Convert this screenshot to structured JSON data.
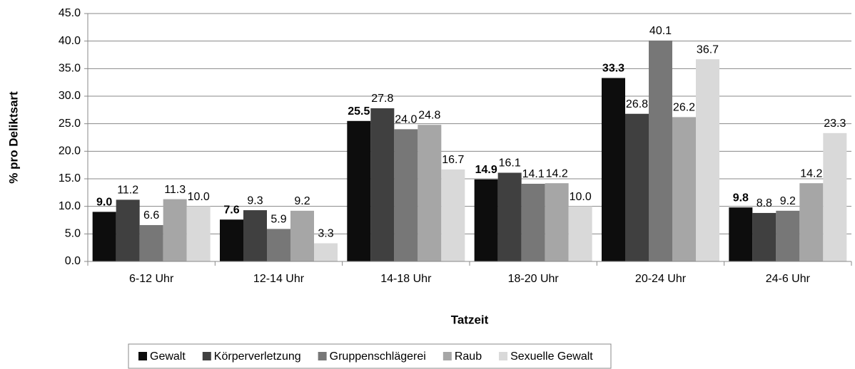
{
  "chart_data": {
    "type": "bar",
    "xlabel": "Tatzeit",
    "ylabel": "% pro Deliktsart",
    "categories": [
      "6-12 Uhr",
      "12-14 Uhr",
      "14-18 Uhr",
      "18-20 Uhr",
      "20-24 Uhr",
      "24-6 Uhr"
    ],
    "series": [
      {
        "name": "Gewalt",
        "color": "#0d0d0d",
        "values": [
          9.0,
          7.6,
          25.5,
          14.9,
          33.3,
          9.8
        ],
        "value_labels": [
          "9.0",
          "7.6",
          "25.5",
          "14.9",
          "33.3",
          "9.8"
        ]
      },
      {
        "name": "Körperverletzung",
        "color": "#404040",
        "values": [
          11.2,
          9.3,
          27.8,
          16.1,
          26.8,
          8.8
        ],
        "value_labels": [
          "11.2",
          "9.3",
          "27.8",
          "16.1",
          "26.8",
          "8.8"
        ]
      },
      {
        "name": "Gruppenschlägerei",
        "color": "#777777",
        "values": [
          6.6,
          5.9,
          24.0,
          14.1,
          40.1,
          9.2
        ],
        "value_labels": [
          "6.6",
          "5.9",
          "24.0",
          "14.1",
          "40.1",
          "9.2"
        ]
      },
      {
        "name": "Raub",
        "color": "#a6a6a6",
        "values": [
          11.3,
          9.2,
          24.8,
          14.2,
          26.2,
          14.2
        ],
        "value_labels": [
          "11.3",
          "9.2",
          "24.8",
          "14.2",
          "26.2",
          "14.2"
        ]
      },
      {
        "name": "Sexuelle Gewalt",
        "color": "#d9d9d9",
        "values": [
          10.0,
          3.3,
          16.7,
          10.0,
          36.7,
          23.3
        ],
        "value_labels": [
          "10.0",
          "3.3",
          "16.7",
          "10.0",
          "36.7",
          "23.3"
        ]
      }
    ],
    "ylim": [
      0,
      45
    ],
    "yticks": [
      {
        "value": 0,
        "label": "0.0"
      },
      {
        "value": 5,
        "label": "5.0"
      },
      {
        "value": 10,
        "label": "10.0"
      },
      {
        "value": 15,
        "label": "15.0"
      },
      {
        "value": 20,
        "label": "20.0"
      },
      {
        "value": 25,
        "label": "25.0"
      },
      {
        "value": 30,
        "label": "30.0"
      },
      {
        "value": 35,
        "label": "35.0"
      },
      {
        "value": 40,
        "label": "40.0"
      },
      {
        "value": 45,
        "label": "45.0"
      }
    ],
    "grid": true,
    "legend": "bottom"
  }
}
